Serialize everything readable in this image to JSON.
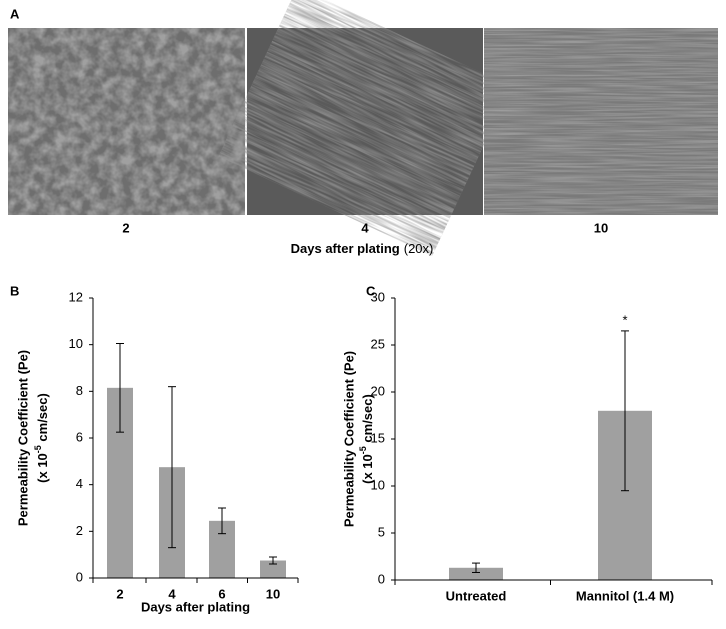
{
  "panel_a": {
    "label": "A",
    "captions": [
      "2",
      "4",
      "10"
    ],
    "xlabel": "Days after plating",
    "xlabel_note": "(20x)"
  },
  "chart_data": [
    {
      "type": "bar",
      "panel_label": "B",
      "ylabel": "Permeability Coefficient (Pe)",
      "ylabel_unit": [
        "(x 10",
        "-5",
        " cm/sec)"
      ],
      "xlabel": "Days after plating",
      "categories": [
        "2",
        "4",
        "6",
        "10"
      ],
      "values": [
        8.15,
        4.75,
        2.45,
        0.75
      ],
      "errors": [
        1.9,
        3.45,
        0.55,
        0.15
      ],
      "color": "#a0a0a0",
      "ylim": [
        0,
        12
      ],
      "yticks": [
        0,
        2,
        4,
        6,
        8,
        10,
        12
      ]
    },
    {
      "type": "bar",
      "panel_label": "C",
      "ylabel": "Permeability Coefficient (Pe)",
      "ylabel_unit": [
        "(x 10",
        "-5",
        " cm/sec)"
      ],
      "categories": [
        "Untreated",
        "Mannitol (1.4 M)"
      ],
      "values": [
        1.3,
        18
      ],
      "errors": [
        0.5,
        8.5
      ],
      "annotations": [
        null,
        "*"
      ],
      "color": "#a0a0a0",
      "ylim": [
        0,
        30
      ],
      "yticks": [
        0,
        5,
        10,
        15,
        20,
        25,
        30
      ]
    }
  ]
}
